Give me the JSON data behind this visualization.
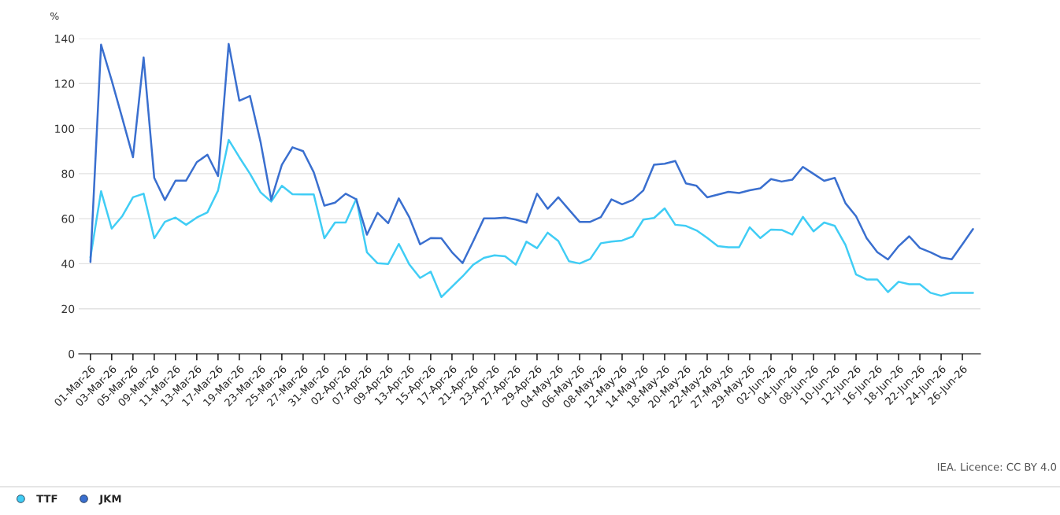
{
  "chart_data": {
    "type": "line",
    "ylabel": "%",
    "categories": [
      "01-Mar-26",
      null,
      "03-Mar-26",
      null,
      "05-Mar-26",
      null,
      "09-Mar-26",
      null,
      "11-Mar-26",
      null,
      "13-Mar-26",
      null,
      "17-Mar-26",
      null,
      "19-Mar-26",
      null,
      "23-Mar-26",
      null,
      "25-Mar-26",
      null,
      "27-Mar-26",
      null,
      "31-Mar-26",
      null,
      "02-Apr-26",
      null,
      "07-Apr-26",
      null,
      "09-Apr-26",
      null,
      "13-Apr-26",
      null,
      "15-Apr-26",
      null,
      "17-Apr-26",
      null,
      "21-Apr-26",
      null,
      "23-Apr-26",
      null,
      "27-Apr-26",
      null,
      "29-Apr-26",
      null,
      "04-May-26",
      null,
      "06-May-26",
      null,
      "08-May-26",
      null,
      "12-May-26",
      null,
      "14-May-26",
      null,
      "18-May-26",
      null,
      "20-May-26",
      null,
      "22-May-26",
      null,
      "27-May-26",
      null,
      "29-May-26",
      null,
      "02-Jun-26",
      null,
      "04-Jun-26",
      null,
      "08-Jun-26",
      null,
      "10-Jun-26",
      null,
      "12-Jun-26",
      null,
      "16-Jun-26",
      null,
      "18-Jun-26",
      null,
      "22-Jun-26",
      null,
      "24-Jun-26",
      null,
      "26-Jun-26",
      null
    ],
    "series": [
      {
        "name": "TTF",
        "color": "#40cdf5",
        "values": [
          42.8,
          72.2,
          55.6,
          61.2,
          69.5,
          71.1,
          51.3,
          58.6,
          60.5,
          57.3,
          60.5,
          62.8,
          72.5,
          95.0,
          87.3,
          80.0,
          71.7,
          67.6,
          74.6,
          70.9,
          70.8,
          70.8,
          51.3,
          58.3,
          58.3,
          68.8,
          45.1,
          40.2,
          39.9,
          48.8,
          39.6,
          33.7,
          36.5,
          25.2,
          29.8,
          34.4,
          39.6,
          42.6,
          43.7,
          43.3,
          39.6,
          49.8,
          46.9,
          53.8,
          50.1,
          41.1,
          40.1,
          42.1,
          49.1,
          49.8,
          50.3,
          52.1,
          59.6,
          60.3,
          64.6,
          57.3,
          56.8,
          54.8,
          51.5,
          47.8,
          47.3,
          47.3,
          56.2,
          51.4,
          55.2,
          55.0,
          52.9,
          60.8,
          54.4,
          58.3,
          56.8,
          48.4,
          35.2,
          33.0,
          33.0,
          27.4,
          32.0,
          30.9,
          30.9,
          27.1,
          25.8,
          27.1,
          27.1,
          27.1
        ]
      },
      {
        "name": "JKM",
        "color": "#3a6fcf",
        "values": [
          40.8,
          137.3,
          121.4,
          104.5,
          87.3,
          131.6,
          78.1,
          68.3,
          76.9,
          76.9,
          85.1,
          88.4,
          78.9,
          137.6,
          112.4,
          114.5,
          94.0,
          68.4,
          83.9,
          91.7,
          90.0,
          80.6,
          65.8,
          67.1,
          71.1,
          68.6,
          52.9,
          62.6,
          58.0,
          69.0,
          60.5,
          48.6,
          51.4,
          51.3,
          45.1,
          40.3,
          50.0,
          60.1,
          60.1,
          60.5,
          59.6,
          58.2,
          71.1,
          64.4,
          69.5,
          64.0,
          58.6,
          58.6,
          60.7,
          68.6,
          66.4,
          68.3,
          72.6,
          84.0,
          84.4,
          85.6,
          75.7,
          74.6,
          69.5,
          70.7,
          71.9,
          71.4,
          72.6,
          73.5,
          77.6,
          76.5,
          77.3,
          83.0,
          79.9,
          76.8,
          78.1,
          66.9,
          61.1,
          51.3,
          45.1,
          41.9,
          47.8,
          52.2,
          47.0,
          45.1,
          42.8,
          42.0,
          48.6,
          55.4
        ]
      }
    ],
    "ylim": [
      0,
      140
    ],
    "yticks": [
      0,
      20,
      40,
      60,
      80,
      100,
      120,
      140
    ],
    "grid": "y",
    "legend": "bottom left",
    "annotations": [
      "IEA. Licence: CC BY 4.0"
    ]
  }
}
